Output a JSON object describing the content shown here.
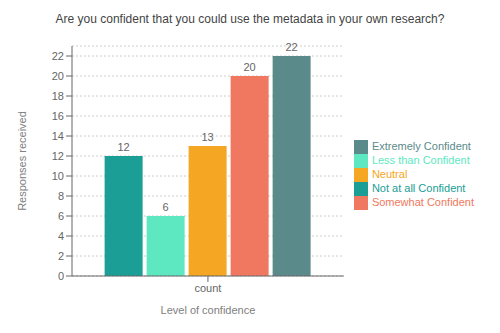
{
  "chart_data": {
    "type": "bar",
    "title": "Are you confident that you could use the metadata in your own research?",
    "categories": [
      "count"
    ],
    "series": [
      {
        "name": "Not at all Confident",
        "color": "#1A9E96",
        "values": [
          12
        ]
      },
      {
        "name": "Less than Confident",
        "color": "#5DE8C1",
        "values": [
          6
        ]
      },
      {
        "name": "Neutral",
        "color": "#F5A623",
        "values": [
          13
        ]
      },
      {
        "name": "Somewhat Confident",
        "color": "#F07860",
        "values": [
          20
        ]
      },
      {
        "name": "Extremely Confident",
        "color": "#5B8A8B",
        "values": [
          22
        ]
      }
    ],
    "xlabel": "Level of confidence",
    "ylabel": "Responses received",
    "ylim": [
      0,
      23
    ],
    "yticks": [
      0,
      2,
      4,
      6,
      8,
      10,
      12,
      14,
      16,
      18,
      20,
      22
    ],
    "grid": true,
    "legend": "right",
    "data_labels": true
  }
}
